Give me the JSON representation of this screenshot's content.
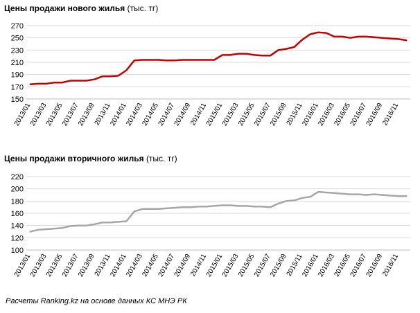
{
  "chart_data": [
    {
      "type": "line",
      "title": "Цены продажи нового жилья",
      "unit_label": "(тыс. тг)",
      "color": "#c00000",
      "ylim": [
        150,
        270
      ],
      "yticks": [
        150,
        170,
        190,
        210,
        230,
        250,
        270
      ],
      "grid": true,
      "categories": [
        "2013/01",
        "2013/02",
        "2013/03",
        "2013/04",
        "2013/05",
        "2013/06",
        "2013/07",
        "2013/08",
        "2013/09",
        "2013/10",
        "2013/11",
        "2013/12",
        "2014/01",
        "2014/02",
        "2014/03",
        "2014/04",
        "2014/05",
        "2014/06",
        "2014/07",
        "2014/08",
        "2014/09",
        "2014/10",
        "2014/11",
        "2014/12",
        "2015/01",
        "2015/02",
        "2015/03",
        "2015/04",
        "2015/05",
        "2015/06",
        "2015/07",
        "2015/08",
        "2015/09",
        "2015/10",
        "2015/11",
        "2015/12",
        "2016/01",
        "2016/02",
        "2016/03",
        "2016/04",
        "2016/05",
        "2016/06",
        "2016/07",
        "2016/08",
        "2016/09",
        "2016/10",
        "2016/11",
        "2016/12"
      ],
      "tick_labels": [
        "2013/01",
        "2013/03",
        "2013/05",
        "2013/07",
        "2013/09",
        "2013/11",
        "2014/01",
        "2014/03",
        "2014/05",
        "2014/07",
        "2014/09",
        "2014/11",
        "2015/01",
        "2015/03",
        "2015/05",
        "2015/07",
        "2015/09",
        "2015/11",
        "2016/01",
        "2016/03",
        "2016/05",
        "2016/07",
        "2016/09",
        "2016/11"
      ],
      "values": [
        174,
        175,
        175,
        177,
        177,
        180,
        180,
        180,
        182,
        187,
        187,
        188,
        197,
        213,
        214,
        214,
        214,
        213,
        213,
        214,
        214,
        214,
        214,
        214,
        222,
        222,
        224,
        224,
        222,
        221,
        221,
        230,
        232,
        235,
        247,
        256,
        259,
        258,
        252,
        252,
        250,
        252,
        252,
        251,
        250,
        249,
        248,
        246
      ]
    },
    {
      "type": "line",
      "title": "Цены продажи вторичного  жилья",
      "unit_label": "(тыс. тг)",
      "color": "#a6a6a6",
      "ylim": [
        100,
        220
      ],
      "yticks": [
        100,
        120,
        140,
        160,
        180,
        200,
        220
      ],
      "grid": true,
      "categories": [
        "2013/01",
        "2013/02",
        "2013/03",
        "2013/04",
        "2013/05",
        "2013/06",
        "2013/07",
        "2013/08",
        "2013/09",
        "2013/10",
        "2013/11",
        "2013/12",
        "2014/01",
        "2014/02",
        "2014/03",
        "2014/04",
        "2014/05",
        "2014/06",
        "2014/07",
        "2014/08",
        "2014/09",
        "2014/10",
        "2014/11",
        "2014/12",
        "2015/01",
        "2015/02",
        "2015/03",
        "2015/04",
        "2015/05",
        "2015/06",
        "2015/07",
        "2015/08",
        "2015/09",
        "2015/10",
        "2015/11",
        "2015/12",
        "2016/01",
        "2016/02",
        "2016/03",
        "2016/04",
        "2016/05",
        "2016/06",
        "2016/07",
        "2016/08",
        "2016/09",
        "2016/10",
        "2016/11",
        "2016/12"
      ],
      "tick_labels": [
        "2013/01",
        "2013/03",
        "2013/05",
        "2013/07",
        "2013/09",
        "2013/11",
        "2014/01",
        "2014/03",
        "2014/05",
        "2014/07",
        "2014/09",
        "2014/11",
        "2015/01",
        "2015/03",
        "2015/05",
        "2015/07",
        "2015/09",
        "2015/11",
        "2016/01",
        "2016/03",
        "2016/05",
        "2016/07",
        "2016/09",
        "2016/11"
      ],
      "values": [
        130,
        133,
        134,
        135,
        136,
        139,
        140,
        140,
        142,
        145,
        145,
        146,
        147,
        163,
        167,
        167,
        167,
        168,
        169,
        170,
        170,
        171,
        171,
        172,
        173,
        173,
        172,
        172,
        171,
        171,
        170,
        176,
        180,
        181,
        185,
        187,
        195,
        194,
        193,
        192,
        191,
        191,
        190,
        191,
        190,
        189,
        188,
        188
      ]
    }
  ],
  "footnote": "Расчеты Ranking.kz на основе данных КС МНЭ РК"
}
